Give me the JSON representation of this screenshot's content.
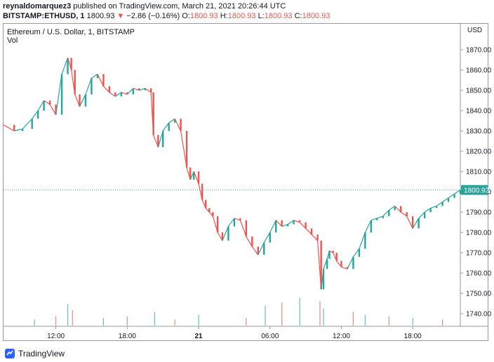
{
  "header": {
    "author": "reynaldomarquez3",
    "published": " published on TradingView.com, March 21, 2021 20:26:44 UTC",
    "symbol": "BITSTAMP:ETHUSD, 1",
    "last": "1800.93",
    "arrow": "▼",
    "change": "−2.86 (−0.16%)",
    "o_label": "O:",
    "o_value": "1800.93",
    "h_label": "H:",
    "h_value": "1800.93",
    "l_label": "L:",
    "l_value": "1800.93",
    "c_label": "C:",
    "c_value": "1800.93"
  },
  "chart_title": "Ethereum / U.S. Dollar, 1, BITSTAMP",
  "volume_label": "Vol",
  "currency": "USD",
  "last_price_label": "1800.93",
  "footer": {
    "brand": "TradingView"
  },
  "colors": {
    "up": "#26a69a",
    "down": "#ef5350",
    "price_line": "#26a69a"
  },
  "chart_data": {
    "type": "line",
    "title": "Ethereum / U.S. Dollar, 1, BITSTAMP",
    "ylabel": "USD",
    "ylim": [
      1734,
      1876
    ],
    "y_ticks": [
      1740,
      1750,
      1760,
      1770,
      1780,
      1790,
      1800,
      1810,
      1820,
      1830,
      1840,
      1850,
      1860,
      1870
    ],
    "x_tick_labels": [
      "12:00",
      "18:00",
      "21",
      "06:00",
      "12:00",
      "18:00"
    ],
    "x_tick_hours": [
      12,
      18,
      24,
      30,
      36,
      42
    ],
    "xlim_hours": [
      7.6,
      46.0
    ],
    "last_price": 1800.93,
    "series": [
      {
        "name": "ETHUSD",
        "x_hours": [
          7.6,
          8.5,
          9.2,
          10.0,
          10.5,
          11.0,
          11.5,
          12.0,
          12.5,
          13.0,
          13.3,
          13.6,
          14.0,
          14.5,
          15.0,
          15.5,
          16.0,
          16.5,
          17.0,
          17.5,
          18.0,
          18.5,
          19.0,
          19.5,
          20.0,
          20.2,
          20.6,
          21.0,
          21.5,
          22.0,
          22.5,
          23.0,
          23.3,
          23.6,
          24.0,
          24.3,
          24.6,
          24.9,
          25.2,
          25.6,
          26.0,
          26.5,
          27.0,
          27.5,
          28.0,
          28.5,
          29.0,
          29.5,
          30.0,
          30.5,
          31.0,
          31.5,
          32.0,
          32.5,
          33.0,
          33.5,
          34.0,
          34.3,
          34.5,
          34.8,
          35.0,
          35.3,
          35.6,
          36.0,
          36.5,
          37.0,
          37.5,
          38.0,
          38.5,
          39.0,
          39.5,
          40.0,
          40.5,
          41.0,
          41.5,
          42.0,
          42.5,
          43.0,
          43.5,
          44.0,
          44.5,
          45.0,
          45.5,
          46.0
        ],
        "close": [
          1833,
          1830,
          1831,
          1836,
          1840,
          1845,
          1843,
          1838,
          1858,
          1866,
          1860,
          1848,
          1842,
          1848,
          1856,
          1858,
          1852,
          1849,
          1847,
          1849,
          1848,
          1851,
          1850,
          1851,
          1849,
          1828,
          1822,
          1830,
          1834,
          1836,
          1830,
          1812,
          1806,
          1810,
          1804,
          1796,
          1792,
          1790,
          1788,
          1780,
          1776,
          1783,
          1787,
          1786,
          1778,
          1773,
          1769,
          1775,
          1780,
          1786,
          1783,
          1784,
          1786,
          1785,
          1782,
          1779,
          1776,
          1752,
          1762,
          1767,
          1771,
          1770,
          1766,
          1763,
          1762,
          1768,
          1772,
          1780,
          1786,
          1787,
          1788,
          1791,
          1793,
          1790,
          1788,
          1782,
          1787,
          1790,
          1792,
          1793,
          1795,
          1797,
          1799,
          1800.93
        ]
      }
    ],
    "volume": {
      "name": "Vol",
      "x_hours": [
        10.2,
        12.0,
        13.0,
        13.4,
        16.0,
        18.0,
        20.3,
        22.0,
        24.0,
        28.0,
        29.6,
        31.0,
        32.5,
        34.2,
        34.5,
        37.0,
        38.0,
        40.0,
        42.0,
        44.5
      ],
      "values": [
        4,
        6,
        14,
        10,
        5,
        6,
        9,
        4,
        7,
        5,
        13,
        15,
        18,
        16,
        11,
        9,
        7,
        6,
        5,
        4
      ]
    }
  }
}
